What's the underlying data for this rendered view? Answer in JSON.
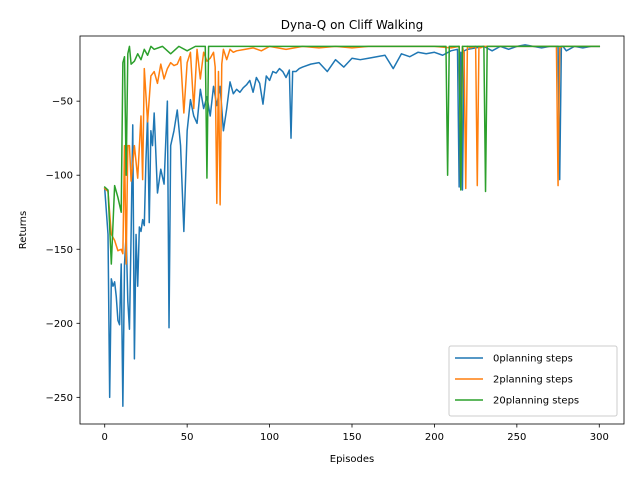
{
  "chart_data": {
    "type": "line",
    "title": "Dyna-Q on Cliff Walking",
    "xlabel": "Episodes",
    "ylabel": "Returns",
    "xlim": [
      -15,
      315
    ],
    "ylim": [
      -268,
      -6
    ],
    "xticks": [
      0,
      50,
      100,
      150,
      200,
      250,
      300
    ],
    "yticks": [
      -250,
      -200,
      -150,
      -100,
      -50
    ],
    "xtick_labels": [
      "0",
      "50",
      "100",
      "150",
      "200",
      "250",
      "300"
    ],
    "ytick_labels": [
      "−250",
      "−200",
      "−150",
      "−100",
      "−50"
    ],
    "grid": false,
    "legend_position": "lower-right",
    "series": [
      {
        "name": "0planning steps",
        "color": "#1f77b4",
        "x": [
          0,
          2,
          3,
          4,
          5,
          6,
          7,
          8,
          9,
          10,
          11,
          12,
          13,
          14,
          15,
          16,
          17,
          18,
          19,
          20,
          21,
          22,
          23,
          24,
          25,
          26,
          27,
          28,
          29,
          30,
          32,
          34,
          36,
          38,
          39,
          40,
          42,
          44,
          46,
          48,
          50,
          52,
          54,
          56,
          58,
          60,
          62,
          64,
          66,
          68,
          70,
          72,
          74,
          76,
          78,
          80,
          82,
          84,
          86,
          88,
          90,
          92,
          94,
          96,
          98,
          100,
          102,
          104,
          106,
          108,
          110,
          112,
          113,
          114,
          116,
          118,
          120,
          125,
          130,
          135,
          140,
          145,
          150,
          155,
          160,
          165,
          170,
          175,
          180,
          185,
          190,
          195,
          200,
          205,
          210,
          214,
          215,
          216,
          217,
          218,
          220,
          225,
          230,
          235,
          240,
          245,
          250,
          255,
          260,
          265,
          270,
          275,
          276,
          277,
          278,
          280,
          285,
          290,
          295,
          300
        ],
        "values": [
          -109,
          -140,
          -250,
          -170,
          -175,
          -172,
          -182,
          -198,
          -201,
          -160,
          -256,
          -160,
          -140,
          -185,
          -204,
          -140,
          -66,
          -224,
          -140,
          -175,
          -135,
          -138,
          -130,
          -134,
          -90,
          -60,
          -132,
          -70,
          -80,
          -58,
          -112,
          -96,
          -106,
          -50,
          -203,
          -80,
          -70,
          -56,
          -80,
          -138,
          -70,
          -49,
          -60,
          -65,
          -42,
          -55,
          -47,
          -60,
          -40,
          -53,
          -40,
          -70,
          -55,
          -37,
          -45,
          -42,
          -44,
          -41,
          -39,
          -36,
          -44,
          -34,
          -38,
          -52,
          -33,
          -36,
          -30,
          -31,
          -28,
          -30,
          -34,
          -29,
          -75,
          -30,
          -30,
          -28,
          -27,
          -25,
          -24,
          -30,
          -22,
          -27,
          -21,
          -22,
          -21,
          -20,
          -19,
          -28,
          -18,
          -20,
          -17,
          -18,
          -17,
          -19,
          -16,
          -15,
          -108,
          -17,
          -110,
          -16,
          -15,
          -14,
          -13,
          -16,
          -13,
          -15,
          -13,
          -12,
          -13,
          -14,
          -13,
          -13,
          -103,
          -13,
          -13,
          -16,
          -13,
          -14,
          -13,
          -13
        ]
      },
      {
        "name": "2planning steps",
        "color": "#ff7f0e",
        "x": [
          0,
          2,
          4,
          6,
          8,
          10,
          11,
          12,
          13,
          14,
          15,
          16,
          18,
          20,
          22,
          23,
          24,
          26,
          28,
          30,
          32,
          34,
          36,
          38,
          40,
          42,
          44,
          46,
          48,
          50,
          52,
          54,
          56,
          58,
          60,
          62,
          64,
          66,
          67,
          68,
          69,
          70,
          71,
          72,
          74,
          76,
          78,
          80,
          85,
          90,
          95,
          100,
          110,
          120,
          130,
          140,
          150,
          160,
          170,
          180,
          190,
          200,
          210,
          215,
          216,
          217,
          218,
          219,
          220,
          222,
          225,
          226,
          227,
          228,
          230,
          240,
          250,
          260,
          270,
          274,
          275,
          276,
          278,
          280,
          290,
          300
        ],
        "values": [
          -109,
          -111,
          -140,
          -144,
          -151,
          -150,
          -153,
          -80,
          -160,
          -80,
          -80,
          -104,
          -80,
          -102,
          -60,
          -103,
          -28,
          -64,
          -33,
          -30,
          -38,
          -25,
          -35,
          -28,
          -24,
          -26,
          -25,
          -20,
          -58,
          -24,
          -17,
          -55,
          -15,
          -35,
          -17,
          -23,
          -21,
          -17,
          -27,
          -119,
          -30,
          -120,
          -25,
          -15,
          -22,
          -15,
          -17,
          -16,
          -15,
          -14,
          -16,
          -13,
          -15,
          -13,
          -14,
          -13,
          -14,
          -13,
          -13,
          -13,
          -13,
          -13,
          -14,
          -13,
          -108,
          -13,
          -18,
          -109,
          -13,
          -14,
          -13,
          -107,
          -13,
          -14,
          -13,
          -13,
          -13,
          -13,
          -13,
          -13,
          -107,
          -14,
          -13,
          -13,
          -13,
          -13
        ]
      },
      {
        "name": "20planning steps",
        "color": "#2ca02c",
        "x": [
          0,
          2,
          4,
          6,
          8,
          10,
          11,
          12,
          13,
          14,
          15,
          16,
          18,
          20,
          22,
          24,
          26,
          28,
          30,
          35,
          40,
          45,
          50,
          55,
          60,
          61,
          62,
          63,
          64,
          70,
          80,
          100,
          150,
          200,
          206,
          207,
          208,
          209,
          210,
          215,
          216,
          217,
          218,
          219,
          220,
          230,
          231,
          232,
          233,
          240,
          260,
          280,
          300
        ],
        "values": [
          -108,
          -110,
          -160,
          -107,
          -115,
          -125,
          -24,
          -20,
          -100,
          -18,
          -13,
          -25,
          -23,
          -18,
          -22,
          -15,
          -19,
          -13,
          -15,
          -13,
          -18,
          -13,
          -16,
          -13,
          -13,
          -13,
          -102,
          -13,
          -13,
          -13,
          -13,
          -13,
          -13,
          -13,
          -13,
          -13,
          -100,
          -13,
          -13,
          -13,
          -110,
          -13,
          -13,
          -13,
          -13,
          -13,
          -111,
          -13,
          -13,
          -13,
          -13,
          -13,
          -13
        ]
      }
    ]
  }
}
